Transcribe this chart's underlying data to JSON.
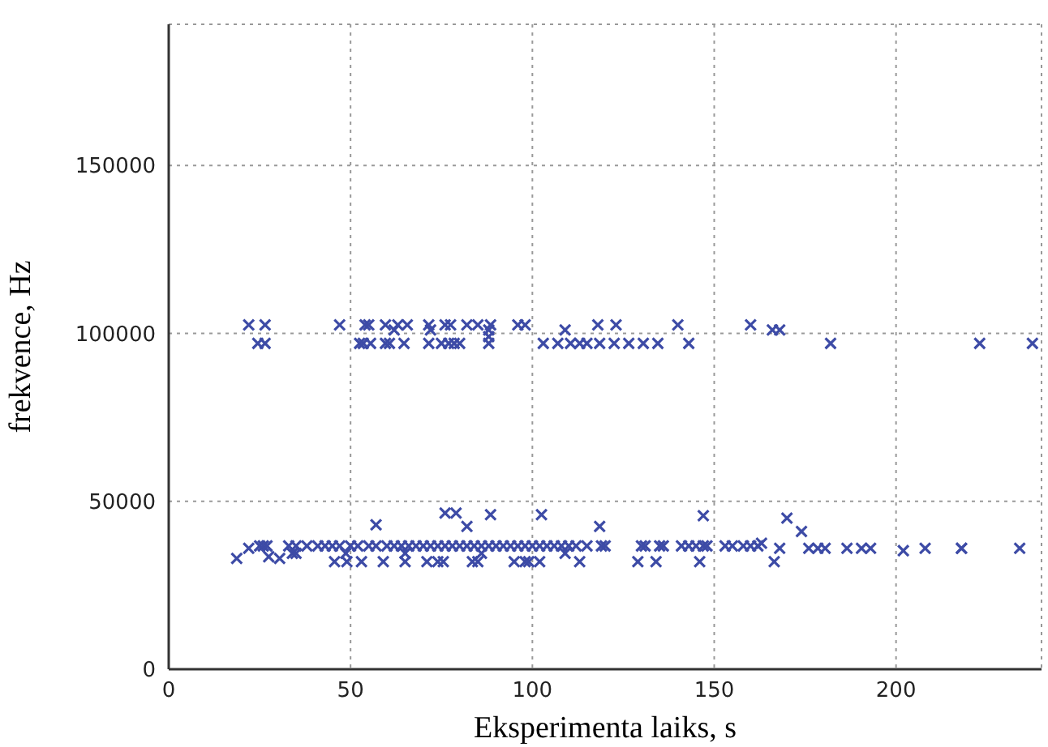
{
  "chart_data": {
    "type": "scatter",
    "xlabel": "Eksperimenta laiks, s",
    "ylabel": "frekvence, Hz",
    "xlim": [
      0,
      240
    ],
    "ylim": [
      0,
      192000
    ],
    "xticks": [
      0,
      50,
      100,
      150,
      200
    ],
    "yticks": [
      0,
      50000,
      100000,
      150000
    ],
    "grid": true,
    "marker": "cross",
    "series": [
      {
        "color": "#3d4ba6",
        "x": [
          22,
          26.5,
          47,
          54,
          55,
          59.6,
          63,
          65.6,
          71.5,
          76,
          77.5,
          82,
          85,
          88.5,
          96,
          98,
          118,
          123,
          140,
          160,
          62,
          72,
          88,
          109,
          166,
          168,
          88,
          24.5,
          26.5,
          52.5,
          53.5,
          55.5,
          59.6,
          60.7,
          64.7,
          71.5,
          75,
          77,
          78.5,
          80,
          88,
          103,
          107,
          110.5,
          113,
          115,
          118.5,
          122.5,
          126.5,
          130.5,
          134.5,
          143,
          182,
          223,
          237.5,
          57,
          76,
          79,
          82,
          88.5,
          102.5,
          118.5,
          147,
          170,
          174,
          18.7,
          27.5,
          30.5,
          45.6,
          49,
          53,
          59,
          65,
          71,
          74,
          75.5,
          83.5,
          85,
          95,
          98,
          99,
          102,
          113,
          129,
          134,
          146,
          166.5,
          22,
          34,
          35,
          48.7,
          65,
          86,
          109,
          25,
          26,
          27,
          33,
          35,
          38,
          41,
          43,
          45,
          47,
          50,
          52,
          55,
          57,
          60,
          62,
          64,
          66,
          68,
          70,
          72,
          74,
          76,
          78,
          80,
          82,
          84,
          86,
          88,
          90,
          92,
          94,
          96,
          98,
          100,
          102,
          104,
          106,
          108,
          110,
          112,
          115,
          119,
          120,
          130,
          131,
          135,
          136,
          141,
          143,
          145,
          147,
          148,
          153,
          155,
          158,
          160,
          162,
          163,
          168,
          218,
          202,
          208,
          234,
          186.5,
          190.5,
          193,
          176,
          178.5,
          180.5,
          218
        ],
        "values": [
          102500,
          102500,
          102500,
          102500,
          102500,
          102500,
          102500,
          102500,
          102500,
          102500,
          102500,
          102500,
          102500,
          102500,
          102500,
          102500,
          102500,
          102500,
          102500,
          102500,
          101000,
          101000,
          101000,
          101000,
          101000,
          101000,
          99000,
          97000,
          97000,
          97000,
          97000,
          97000,
          97000,
          97000,
          97000,
          97000,
          97000,
          97000,
          97000,
          97000,
          97000,
          97000,
          97000,
          97000,
          97000,
          97000,
          97000,
          97000,
          97000,
          97000,
          97000,
          97000,
          97000,
          97000,
          97000,
          43000,
          46500,
          46500,
          42500,
          46000,
          46000,
          42500,
          45700,
          45000,
          41000,
          33000,
          33500,
          33000,
          32000,
          32000,
          32000,
          32000,
          32000,
          32000,
          32000,
          32000,
          32000,
          32000,
          32000,
          32000,
          32000,
          32000,
          32000,
          32000,
          32000,
          32000,
          32000,
          36000,
          34500,
          34500,
          34500,
          34500,
          34500,
          34500,
          36700,
          36700,
          36700,
          36700,
          36700,
          36700,
          36700,
          36700,
          36700,
          36700,
          36700,
          36700,
          36700,
          36700,
          36700,
          36700,
          36700,
          36700,
          36700,
          36700,
          36700,
          36700,
          36700,
          36700,
          36700,
          36700,
          36700,
          36700,
          36700,
          36700,
          36700,
          36700,
          36700,
          36700,
          36700,
          36700,
          36700,
          36700,
          36700,
          36700,
          36700,
          36700,
          36700,
          36700,
          36700,
          36700,
          36700,
          36700,
          36700,
          36700,
          36700,
          36700,
          36700,
          36700,
          36700,
          36700,
          36700,
          36700,
          37500,
          36000,
          36000,
          35300,
          36000,
          36000,
          36000,
          36000,
          36000,
          36000,
          36000,
          36000,
          36000
        ]
      }
    ]
  }
}
